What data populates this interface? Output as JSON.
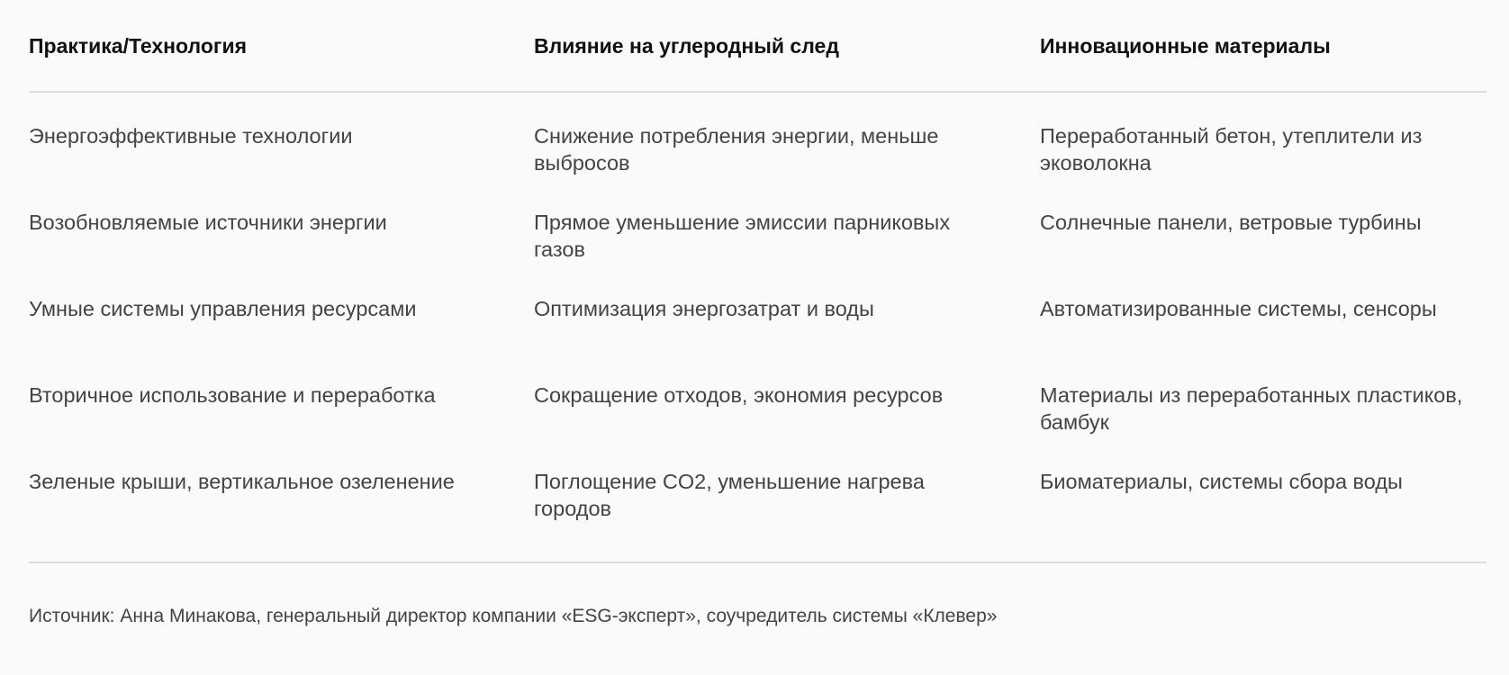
{
  "table": {
    "headers": [
      "Практика/Технология",
      "Влияние на углеродный след",
      "Инновационные материалы"
    ],
    "rows": [
      [
        "Энергоэффективные технологии",
        "Снижение потребления энергии, меньше выбросов",
        "Переработанный бетон, утеплители из эковолокна"
      ],
      [
        "Возобновляемые источники энергии",
        "Прямое уменьшение эмиссии парниковых газов",
        "Солнечные панели, ветровые турбины"
      ],
      [
        "Умные системы управления ресурсами",
        "Оптимизация энергозатрат и воды",
        "Автоматизированные системы, сенсоры"
      ],
      [
        "Вторичное использование и переработка",
        "Сокращение отходов, экономия ресурсов",
        "Материалы из переработанных пластиков, бамбук"
      ],
      [
        "Зеленые крыши, вертикальное озеленение",
        "Поглощение CO2, уменьшение нагрева городов",
        "Биоматериалы, системы сбора воды"
      ]
    ]
  },
  "footer": {
    "source": "Источник:  Анна Минакова, генеральный директор компании «ESG-эксперт», соучредитель системы «Клевер»"
  }
}
